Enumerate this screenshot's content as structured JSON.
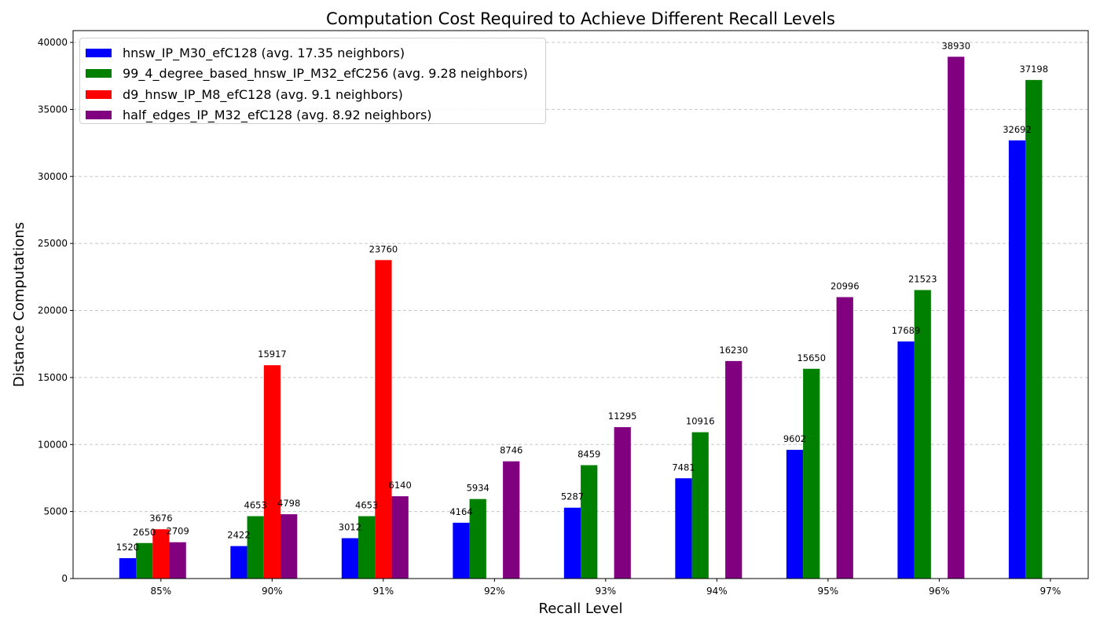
{
  "chart_data": {
    "type": "bar",
    "title": "Computation Cost Required to Achieve Different Recall Levels",
    "xlabel": "Recall Level",
    "ylabel": "Distance Computations",
    "categories": [
      "85%",
      "90%",
      "91%",
      "92%",
      "93%",
      "94%",
      "95%",
      "96%",
      "97%"
    ],
    "ylim": [
      0,
      40880
    ],
    "yticks": [
      0,
      5000,
      10000,
      15000,
      20000,
      25000,
      30000,
      35000,
      40000
    ],
    "grid": "y dashed",
    "legend": "top-left",
    "series": [
      {
        "name": "hnsw_IP_M30_efC128 (avg. 17.35 neighbors)",
        "color": "#0000ff",
        "values": [
          1520,
          2422,
          3012,
          4164,
          5287,
          7481,
          9602,
          17689,
          32692
        ]
      },
      {
        "name": "99_4_degree_based_hnsw_IP_M32_efC256 (avg. 9.28 neighbors)",
        "color": "#008000",
        "values": [
          2650,
          4653,
          4653,
          5934,
          8459,
          10916,
          15650,
          21523,
          37198
        ]
      },
      {
        "name": "d9_hnsw_IP_M8_efC128 (avg. 9.1 neighbors)",
        "color": "#ff0000",
        "values": [
          3676,
          15917,
          23760,
          null,
          null,
          null,
          null,
          null,
          null
        ]
      },
      {
        "name": "half_edges_IP_M32_efC128 (avg. 8.92 neighbors)",
        "color": "#800080",
        "values": [
          2709,
          4798,
          6140,
          8746,
          11295,
          16230,
          20996,
          38930,
          null
        ]
      }
    ]
  }
}
